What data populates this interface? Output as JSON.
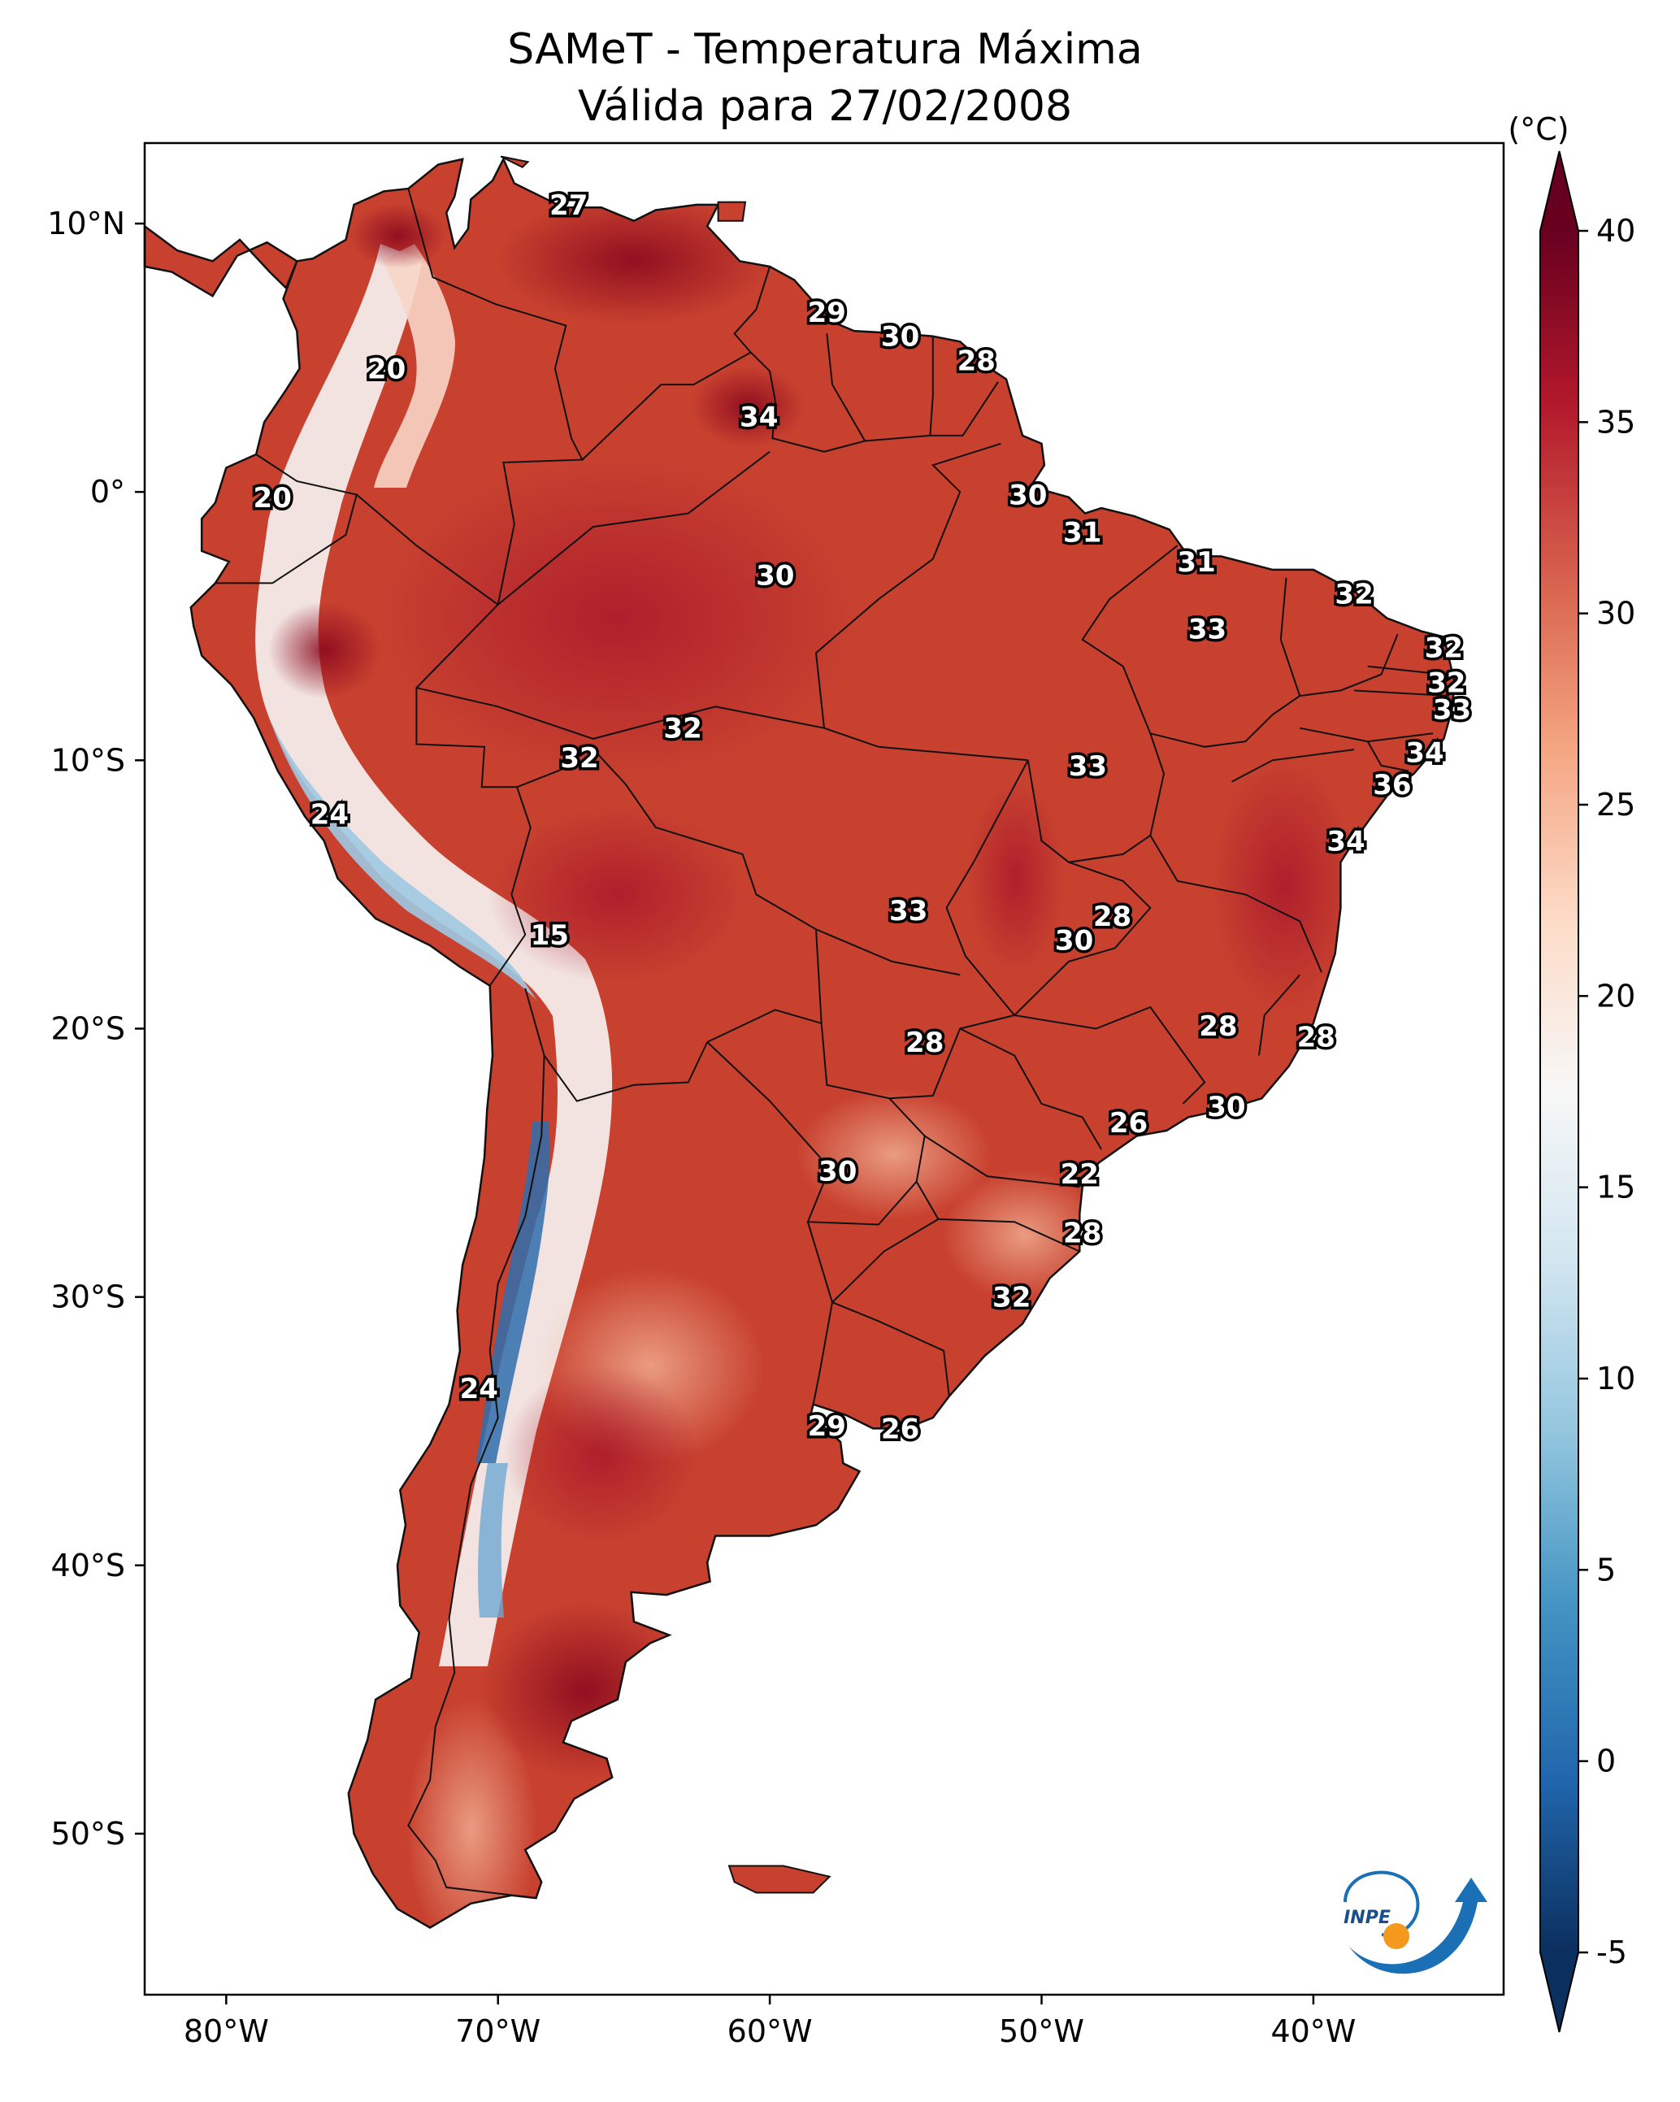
{
  "title": {
    "line1": "SAMeT - Temperatura Máxima",
    "line2": "Válida para 27/02/2008"
  },
  "map": {
    "extent": {
      "lon_min": -83,
      "lon_max": -33,
      "lat_min": -56,
      "lat_max": 13
    },
    "lon_ticks": [
      {
        "value": -80,
        "label": "80°W"
      },
      {
        "value": -70,
        "label": "70°W"
      },
      {
        "value": -60,
        "label": "60°W"
      },
      {
        "value": -50,
        "label": "50°W"
      },
      {
        "value": -40,
        "label": "40°W"
      }
    ],
    "lat_ticks": [
      {
        "value": 10,
        "label": "10°N"
      },
      {
        "value": 0,
        "label": "0°"
      },
      {
        "value": -10,
        "label": "10°S"
      },
      {
        "value": -20,
        "label": "20°S"
      },
      {
        "value": -30,
        "label": "30°S"
      },
      {
        "value": -40,
        "label": "40°S"
      },
      {
        "value": -50,
        "label": "50°S"
      }
    ],
    "colors": {
      "hot_dark": "#8b0a1f",
      "hot": "#c0392b",
      "warm": "#dc5a45",
      "mild": "#f2a283",
      "neutral": "#f7f4f2",
      "cool": "#9ec9e2",
      "cold": "#2f6fad"
    }
  },
  "colorbar": {
    "unit": "(°C)",
    "min": -5,
    "max": 40,
    "ticks": [
      {
        "value": 40,
        "label": "40"
      },
      {
        "value": 35,
        "label": "35"
      },
      {
        "value": 30,
        "label": "30"
      },
      {
        "value": 25,
        "label": "25"
      },
      {
        "value": 20,
        "label": "20"
      },
      {
        "value": 15,
        "label": "15"
      },
      {
        "value": 10,
        "label": "10"
      },
      {
        "value": 5,
        "label": "5"
      },
      {
        "value": 0,
        "label": "0"
      },
      {
        "value": -5,
        "label": "-5"
      }
    ],
    "stops": [
      "#0b2f5e",
      "#2166ac",
      "#4393c3",
      "#92c5de",
      "#d1e5f0",
      "#f7f7f7",
      "#fddbc7",
      "#f4a582",
      "#d6604d",
      "#b2182b",
      "#67001f"
    ]
  },
  "temperature_labels": [
    {
      "lon": -67.4,
      "lat": 10.7,
      "label": "27"
    },
    {
      "lon": -57.9,
      "lat": 6.7,
      "label": "29"
    },
    {
      "lon": -55.2,
      "lat": 5.8,
      "label": "30"
    },
    {
      "lon": -52.4,
      "lat": 4.9,
      "label": "28"
    },
    {
      "lon": -60.4,
      "lat": 2.8,
      "label": "34"
    },
    {
      "lon": -74.1,
      "lat": 4.6,
      "label": "20"
    },
    {
      "lon": -78.3,
      "lat": -0.2,
      "label": "20"
    },
    {
      "lon": -50.5,
      "lat": -0.1,
      "label": "30"
    },
    {
      "lon": -48.5,
      "lat": -1.5,
      "label": "31"
    },
    {
      "lon": -44.3,
      "lat": -2.6,
      "label": "31"
    },
    {
      "lon": -59.8,
      "lat": -3.1,
      "label": "30"
    },
    {
      "lon": -38.5,
      "lat": -3.8,
      "label": "32"
    },
    {
      "lon": -43.9,
      "lat": -5.1,
      "label": "33"
    },
    {
      "lon": -35.2,
      "lat": -5.8,
      "label": "32"
    },
    {
      "lon": -35.1,
      "lat": -7.1,
      "label": "32"
    },
    {
      "lon": -34.9,
      "lat": -8.1,
      "label": "33"
    },
    {
      "lon": -63.2,
      "lat": -8.8,
      "label": "32"
    },
    {
      "lon": -67.0,
      "lat": -9.9,
      "label": "32"
    },
    {
      "lon": -35.9,
      "lat": -9.7,
      "label": "34"
    },
    {
      "lon": -48.3,
      "lat": -10.2,
      "label": "33"
    },
    {
      "lon": -37.1,
      "lat": -10.9,
      "label": "36"
    },
    {
      "lon": -76.2,
      "lat": -12.0,
      "label": "24"
    },
    {
      "lon": -38.8,
      "lat": -13.0,
      "label": "34"
    },
    {
      "lon": -54.9,
      "lat": -15.6,
      "label": "33"
    },
    {
      "lon": -47.4,
      "lat": -15.8,
      "label": "28"
    },
    {
      "lon": -48.8,
      "lat": -16.7,
      "label": "30"
    },
    {
      "lon": -68.1,
      "lat": -16.5,
      "label": "15"
    },
    {
      "lon": -54.3,
      "lat": -20.5,
      "label": "28"
    },
    {
      "lon": -43.5,
      "lat": -19.9,
      "label": "28"
    },
    {
      "lon": -39.9,
      "lat": -20.3,
      "label": "28"
    },
    {
      "lon": -43.2,
      "lat": -22.9,
      "label": "30"
    },
    {
      "lon": -46.8,
      "lat": -23.5,
      "label": "26"
    },
    {
      "lon": -48.6,
      "lat": -25.4,
      "label": "22"
    },
    {
      "lon": -57.5,
      "lat": -25.3,
      "label": "30"
    },
    {
      "lon": -48.5,
      "lat": -27.6,
      "label": "28"
    },
    {
      "lon": -51.1,
      "lat": -30.0,
      "label": "32"
    },
    {
      "lon": -70.7,
      "lat": -33.4,
      "label": "24"
    },
    {
      "lon": -57.9,
      "lat": -34.8,
      "label": "29"
    },
    {
      "lon": -55.2,
      "lat": -34.9,
      "label": "26"
    }
  ],
  "logo": {
    "text": "INPE",
    "ring_color": "#1a6fb5",
    "dot_color": "#f39a1e"
  }
}
